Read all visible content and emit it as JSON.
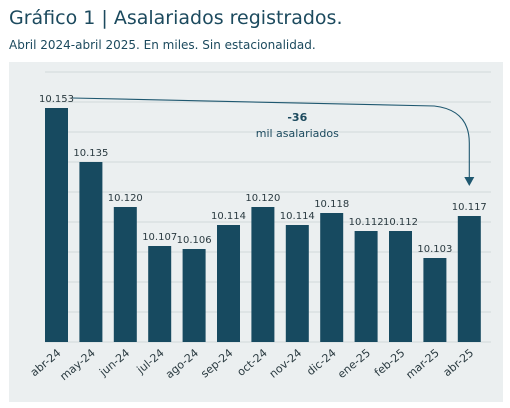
{
  "title": "Gráfico 1 | Asalariados registrados.",
  "subtitle": "Abril 2024-abril 2025. En miles. Sin estacionalidad.",
  "colors": {
    "bar": "#174a60",
    "panel": "#ebeff0",
    "grid": "#c9d0d3",
    "arrow": "#1f5870"
  },
  "chart_data": {
    "type": "bar",
    "categories": [
      "abr-24",
      "may-24",
      "jun-24",
      "jul-24",
      "ago-24",
      "sep-24",
      "oct-24",
      "nov-24",
      "dic-24",
      "ene-25",
      "feb-25",
      "mar-25",
      "abr-25"
    ],
    "values": [
      10153,
      10135,
      10120,
      10107,
      10106,
      10114,
      10120,
      10114,
      10118,
      10112,
      10112,
      10103,
      10117
    ],
    "data_labels": [
      "10.153",
      "10.135",
      "10.120",
      "10.107",
      "10.106",
      "10.114",
      "10.120",
      "10.114",
      "10.118",
      "10.112",
      "10.112",
      "10.103",
      "10.117"
    ],
    "ylim": [
      10075,
      10165
    ],
    "grid": true,
    "annotation": {
      "value": "-36",
      "text": "mil asalariados",
      "from": "abr-24",
      "to": "abr-25"
    }
  }
}
